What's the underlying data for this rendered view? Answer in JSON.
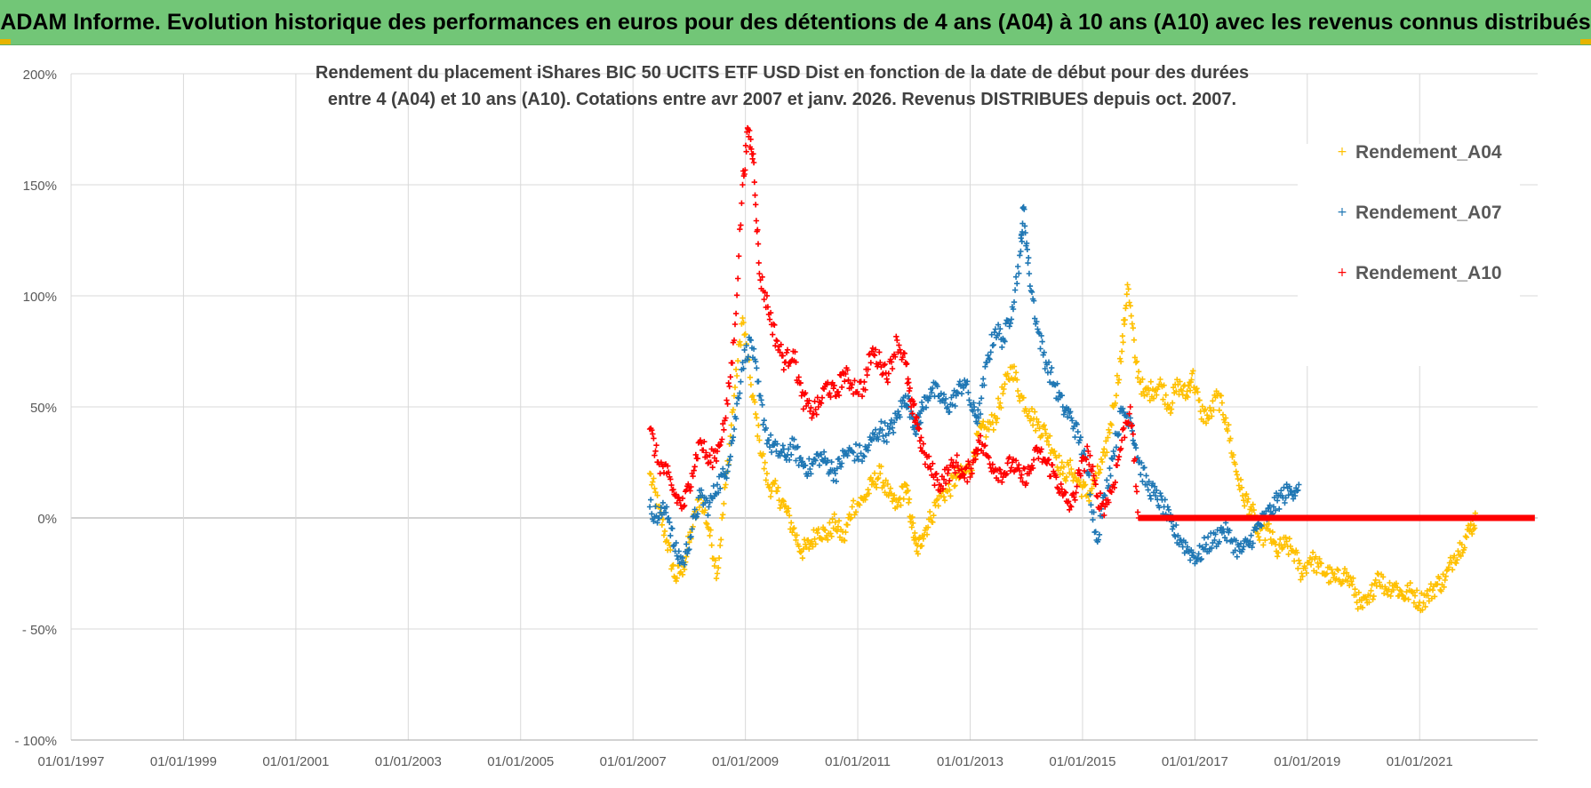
{
  "header": {
    "title": "ADAM Informe. Evolution historique des performances en euros pour des détentions de 4 ans (A04) à 10 ans (A10) avec les revenus connus distribués"
  },
  "colors": {
    "header_bg": "#72c677",
    "a04": "#ffc000",
    "a07": "#1f77b4",
    "a10": "#ff0000",
    "grid": "#d9d9d9"
  },
  "chart_data": {
    "type": "scatter",
    "title": [
      "Rendement du placement iShares BIC 50 UCITS ETF USD Dist en fonction de la date de début pour des durées",
      "entre 4 (A04) et 10 ans (A10).  Cotations entre avr 2007 et janv. 2026.  Revenus DISTRIBUES depuis oct. 2007."
    ],
    "xlim": [
      1997.0,
      2023.1
    ],
    "ylim": [
      -100,
      200
    ],
    "x_ticks": [
      1997,
      1999,
      2001,
      2003,
      2005,
      2007,
      2009,
      2011,
      2013,
      2015,
      2017,
      2019,
      2021
    ],
    "x_tick_labels": [
      "01/01/1997",
      "01/01/1999",
      "01/01/2001",
      "01/01/2003",
      "01/01/2005",
      "01/01/2007",
      "01/01/2009",
      "01/01/2011",
      "01/01/2013",
      "01/01/2015",
      "01/01/2017",
      "01/01/2019",
      "01/01/2021"
    ],
    "y_ticks": [
      -100,
      -50,
      0,
      50,
      100,
      150,
      200
    ],
    "y_tick_labels": [
      "- 100%",
      "- 50%",
      "0%",
      "50%",
      "100%",
      "150%",
      "200%"
    ],
    "legend": [
      "Rendement_A04",
      "Rendement_A07",
      "Rendement_A10"
    ],
    "legend_position": "right",
    "series": [
      {
        "name": "Rendement_A04",
        "color": "#ffc000",
        "points": [
          [
            2007.3,
            20
          ],
          [
            2007.45,
            5
          ],
          [
            2007.6,
            -10
          ],
          [
            2007.75,
            -27
          ],
          [
            2007.9,
            -22
          ],
          [
            2008.05,
            -5
          ],
          [
            2008.2,
            10
          ],
          [
            2008.35,
            -5
          ],
          [
            2008.5,
            -25
          ],
          [
            2008.65,
            15
          ],
          [
            2008.8,
            55
          ],
          [
            2008.95,
            90
          ],
          [
            2009.1,
            60
          ],
          [
            2009.25,
            35
          ],
          [
            2009.4,
            15
          ],
          [
            2009.55,
            12
          ],
          [
            2009.7,
            5
          ],
          [
            2009.85,
            -5
          ],
          [
            2010.0,
            -15
          ],
          [
            2010.15,
            -12
          ],
          [
            2010.3,
            -5
          ],
          [
            2010.45,
            -8
          ],
          [
            2010.6,
            -2
          ],
          [
            2010.75,
            -10
          ],
          [
            2010.9,
            5
          ],
          [
            2011.1,
            8
          ],
          [
            2011.25,
            15
          ],
          [
            2011.4,
            20
          ],
          [
            2011.55,
            10
          ],
          [
            2011.7,
            5
          ],
          [
            2011.85,
            15
          ],
          [
            2011.95,
            0
          ],
          [
            2012.05,
            -15
          ],
          [
            2012.15,
            -8
          ],
          [
            2012.3,
            0
          ],
          [
            2012.45,
            10
          ],
          [
            2012.6,
            12
          ],
          [
            2012.75,
            18
          ],
          [
            2012.9,
            20
          ],
          [
            2013.05,
            25
          ],
          [
            2013.15,
            38
          ],
          [
            2013.3,
            40
          ],
          [
            2013.45,
            45
          ],
          [
            2013.6,
            58
          ],
          [
            2013.75,
            68
          ],
          [
            2013.9,
            55
          ],
          [
            2014.05,
            48
          ],
          [
            2014.2,
            42
          ],
          [
            2014.35,
            38
          ],
          [
            2014.5,
            30
          ],
          [
            2014.65,
            20
          ],
          [
            2014.8,
            22
          ],
          [
            2014.95,
            15
          ],
          [
            2015.1,
            10
          ],
          [
            2015.25,
            18
          ],
          [
            2015.4,
            28
          ],
          [
            2015.55,
            50
          ],
          [
            2015.7,
            75
          ],
          [
            2015.8,
            105
          ],
          [
            2015.95,
            70
          ],
          [
            2016.1,
            55
          ],
          [
            2016.25,
            58
          ],
          [
            2016.4,
            60
          ],
          [
            2016.55,
            50
          ],
          [
            2016.7,
            60
          ],
          [
            2016.85,
            55
          ],
          [
            2016.95,
            65
          ],
          [
            2017.1,
            48
          ],
          [
            2017.25,
            45
          ],
          [
            2017.4,
            55
          ],
          [
            2017.55,
            45
          ],
          [
            2017.7,
            25
          ],
          [
            2017.85,
            10
          ],
          [
            2018.0,
            5
          ],
          [
            2018.15,
            -10
          ],
          [
            2018.3,
            -5
          ],
          [
            2018.45,
            -15
          ],
          [
            2018.6,
            -12
          ],
          [
            2018.75,
            -15
          ],
          [
            2018.9,
            -25
          ],
          [
            2019.05,
            -18
          ],
          [
            2019.2,
            -22
          ],
          [
            2019.35,
            -25
          ],
          [
            2019.5,
            -28
          ],
          [
            2019.65,
            -25
          ],
          [
            2019.8,
            -30
          ],
          [
            2019.95,
            -40
          ],
          [
            2020.1,
            -38
          ],
          [
            2020.25,
            -25
          ],
          [
            2020.4,
            -32
          ],
          [
            2020.55,
            -30
          ],
          [
            2020.7,
            -35
          ],
          [
            2020.85,
            -33
          ],
          [
            2021.0,
            -38
          ],
          [
            2021.15,
            -35
          ],
          [
            2021.3,
            -30
          ],
          [
            2021.45,
            -28
          ],
          [
            2021.6,
            -18
          ],
          [
            2021.75,
            -12
          ],
          [
            2021.9,
            -5
          ],
          [
            2022.0,
            0
          ]
        ]
      },
      {
        "name": "Rendement_A07",
        "color": "#1f77b4",
        "points": [
          [
            2007.3,
            5
          ],
          [
            2007.45,
            0
          ],
          [
            2007.6,
            5
          ],
          [
            2007.75,
            -15
          ],
          [
            2007.9,
            -20
          ],
          [
            2008.05,
            -5
          ],
          [
            2008.2,
            10
          ],
          [
            2008.35,
            5
          ],
          [
            2008.5,
            15
          ],
          [
            2008.65,
            20
          ],
          [
            2008.8,
            40
          ],
          [
            2008.95,
            70
          ],
          [
            2009.1,
            80
          ],
          [
            2009.25,
            55
          ],
          [
            2009.4,
            35
          ],
          [
            2009.55,
            30
          ],
          [
            2009.7,
            28
          ],
          [
            2009.85,
            32
          ],
          [
            2010.0,
            25
          ],
          [
            2010.15,
            22
          ],
          [
            2010.3,
            28
          ],
          [
            2010.45,
            25
          ],
          [
            2010.6,
            20
          ],
          [
            2010.75,
            28
          ],
          [
            2010.9,
            30
          ],
          [
            2011.1,
            28
          ],
          [
            2011.25,
            35
          ],
          [
            2011.4,
            40
          ],
          [
            2011.55,
            38
          ],
          [
            2011.7,
            45
          ],
          [
            2011.85,
            55
          ],
          [
            2011.95,
            48
          ],
          [
            2012.05,
            40
          ],
          [
            2012.15,
            50
          ],
          [
            2012.3,
            58
          ],
          [
            2012.45,
            55
          ],
          [
            2012.6,
            50
          ],
          [
            2012.75,
            55
          ],
          [
            2012.9,
            62
          ],
          [
            2013.05,
            48
          ],
          [
            2013.15,
            45
          ],
          [
            2013.3,
            70
          ],
          [
            2013.45,
            85
          ],
          [
            2013.6,
            80
          ],
          [
            2013.75,
            95
          ],
          [
            2013.9,
            120
          ],
          [
            2013.95,
            140
          ],
          [
            2014.05,
            110
          ],
          [
            2014.2,
            85
          ],
          [
            2014.35,
            70
          ],
          [
            2014.5,
            60
          ],
          [
            2014.65,
            50
          ],
          [
            2014.8,
            45
          ],
          [
            2014.95,
            35
          ],
          [
            2015.1,
            20
          ],
          [
            2015.25,
            -10
          ],
          [
            2015.4,
            10
          ],
          [
            2015.55,
            30
          ],
          [
            2015.7,
            48
          ],
          [
            2015.85,
            45
          ],
          [
            2016.0,
            25
          ],
          [
            2016.15,
            15
          ],
          [
            2016.3,
            10
          ],
          [
            2016.45,
            5
          ],
          [
            2016.6,
            -5
          ],
          [
            2016.75,
            -10
          ],
          [
            2016.9,
            -15
          ],
          [
            2017.05,
            -18
          ],
          [
            2017.2,
            -12
          ],
          [
            2017.35,
            -10
          ],
          [
            2017.5,
            -5
          ],
          [
            2017.65,
            -10
          ],
          [
            2017.8,
            -15
          ],
          [
            2017.95,
            -12
          ],
          [
            2018.1,
            -5
          ],
          [
            2018.25,
            0
          ],
          [
            2018.4,
            5
          ],
          [
            2018.55,
            10
          ],
          [
            2018.7,
            12
          ],
          [
            2018.85,
            15
          ]
        ]
      },
      {
        "name": "Rendement_A10",
        "color": "#ff0000",
        "points": [
          [
            2007.3,
            40
          ],
          [
            2007.45,
            25
          ],
          [
            2007.6,
            20
          ],
          [
            2007.75,
            10
          ],
          [
            2007.9,
            5
          ],
          [
            2008.05,
            20
          ],
          [
            2008.2,
            35
          ],
          [
            2008.35,
            25
          ],
          [
            2008.5,
            30
          ],
          [
            2008.65,
            45
          ],
          [
            2008.8,
            80
          ],
          [
            2008.95,
            150
          ],
          [
            2009.05,
            175
          ],
          [
            2009.15,
            160
          ],
          [
            2009.25,
            110
          ],
          [
            2009.4,
            95
          ],
          [
            2009.55,
            80
          ],
          [
            2009.7,
            70
          ],
          [
            2009.85,
            75
          ],
          [
            2010.0,
            55
          ],
          [
            2010.15,
            48
          ],
          [
            2010.3,
            50
          ],
          [
            2010.45,
            60
          ],
          [
            2010.6,
            55
          ],
          [
            2010.75,
            65
          ],
          [
            2010.9,
            60
          ],
          [
            2011.1,
            58
          ],
          [
            2011.25,
            75
          ],
          [
            2011.4,
            70
          ],
          [
            2011.55,
            65
          ],
          [
            2011.7,
            80
          ],
          [
            2011.85,
            70
          ],
          [
            2011.95,
            50
          ],
          [
            2012.05,
            45
          ],
          [
            2012.15,
            30
          ],
          [
            2012.3,
            22
          ],
          [
            2012.45,
            15
          ],
          [
            2012.6,
            20
          ],
          [
            2012.75,
            25
          ],
          [
            2012.9,
            18
          ],
          [
            2013.05,
            25
          ],
          [
            2013.15,
            35
          ],
          [
            2013.3,
            28
          ],
          [
            2013.45,
            22
          ],
          [
            2013.6,
            20
          ],
          [
            2013.75,
            25
          ],
          [
            2013.9,
            18
          ],
          [
            2014.05,
            20
          ],
          [
            2014.2,
            30
          ],
          [
            2014.35,
            25
          ],
          [
            2014.5,
            20
          ],
          [
            2014.65,
            10
          ],
          [
            2014.8,
            5
          ],
          [
            2014.95,
            20
          ],
          [
            2015.1,
            30
          ],
          [
            2015.25,
            10
          ],
          [
            2015.4,
            5
          ],
          [
            2015.55,
            15
          ],
          [
            2015.7,
            35
          ],
          [
            2015.85,
            50
          ],
          [
            2016.0,
            0
          ]
        ]
      }
    ],
    "a10_zero_line": {
      "x_start": 2016.0,
      "x_end": 2023.05,
      "value": 0
    }
  }
}
